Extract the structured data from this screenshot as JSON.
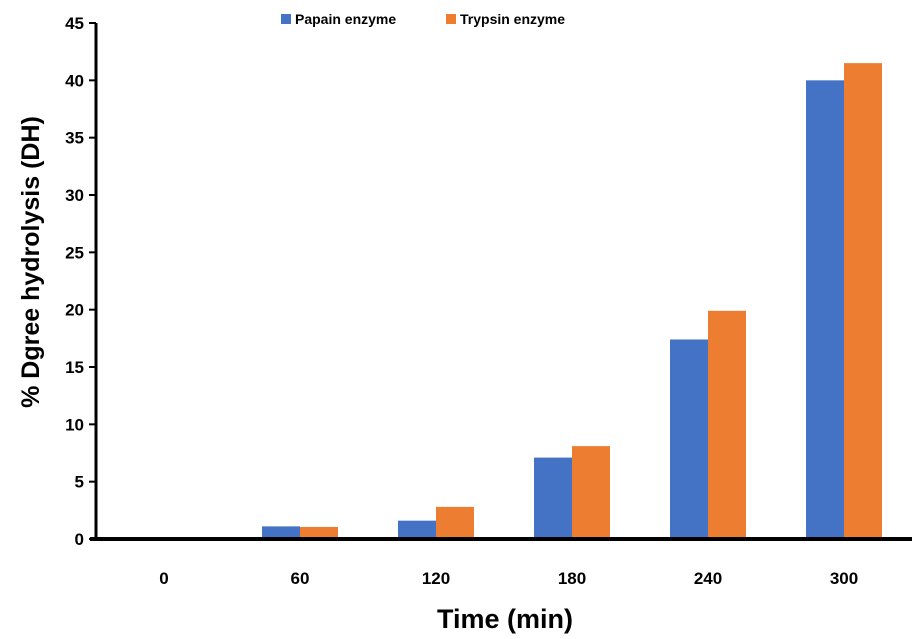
{
  "chart_data": {
    "type": "bar",
    "title": "",
    "xlabel": "Time (min)",
    "ylabel": "% Dgree hydrolysis (DH)",
    "categories": [
      "0",
      "60",
      "120",
      "180",
      "240",
      "300"
    ],
    "ylim": [
      0,
      45
    ],
    "yticks": [
      0,
      5,
      10,
      15,
      20,
      25,
      30,
      35,
      40,
      45
    ],
    "grid": false,
    "legend_position": "top",
    "series": [
      {
        "name": "Papain enzyme",
        "color": "#4472C4",
        "values": [
          0,
          1.1,
          1.6,
          7.1,
          17.4,
          40.0
        ]
      },
      {
        "name": "Trypsin enzyme",
        "color": "#ED7D31",
        "values": [
          0,
          1.05,
          2.8,
          8.1,
          19.9,
          41.5
        ]
      }
    ]
  }
}
